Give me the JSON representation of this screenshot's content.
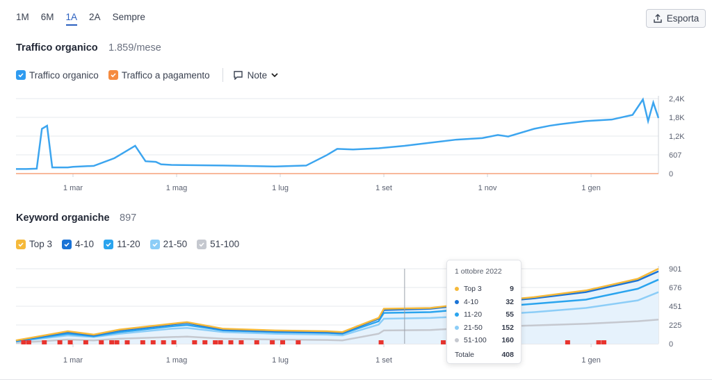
{
  "periods": [
    {
      "label": "1M",
      "active": false
    },
    {
      "label": "6M",
      "active": false
    },
    {
      "label": "1A",
      "active": true
    },
    {
      "label": "2A",
      "active": false
    },
    {
      "label": "Sempre",
      "active": false
    }
  ],
  "export_label": "Esporta",
  "traffic": {
    "title": "Traffico organico",
    "value": "1.859/mese",
    "legend": [
      {
        "label": "Traffico organico",
        "color": "#2e9bf0"
      },
      {
        "label": "Traffico a pagamento",
        "color": "#f58b40"
      }
    ],
    "notes_label": "Note"
  },
  "keywords": {
    "title": "Keyword organiche",
    "value": "897",
    "legend": [
      {
        "label": "Top 3",
        "color": "#f5b93a"
      },
      {
        "label": "4-10",
        "color": "#1a73d6"
      },
      {
        "label": "11-20",
        "color": "#2aa4ee"
      },
      {
        "label": "21-50",
        "color": "#8ccdf7"
      },
      {
        "label": "51-100",
        "color": "#c5c8cf"
      }
    ]
  },
  "x_ticks": [
    "1 mar",
    "1 mag",
    "1 lug",
    "1 set",
    "1 nov",
    "1 gen"
  ],
  "tooltip": {
    "date": "1 ottobre 2022",
    "rows": [
      {
        "name": "Top 3",
        "value": "9",
        "color": "#f5b93a"
      },
      {
        "name": "4-10",
        "value": "32",
        "color": "#1a73d6"
      },
      {
        "name": "11-20",
        "value": "55",
        "color": "#2aa4ee"
      },
      {
        "name": "21-50",
        "value": "152",
        "color": "#8ccdf7"
      },
      {
        "name": "51-100",
        "value": "160",
        "color": "#c5c8cf"
      }
    ],
    "total_label": "Totale",
    "total_value": "408"
  },
  "chart_data": [
    {
      "type": "line",
      "ylabel": "",
      "y_ticks": [
        "2,4K",
        "1,8K",
        "1,2K",
        "607",
        "0"
      ],
      "ylim": [
        0,
        2428
      ],
      "x_ticks": [
        "1 mar",
        "1 mag",
        "1 lug",
        "1 set",
        "1 nov",
        "1 gen"
      ],
      "x_months": [
        0,
        0.2,
        0.4,
        0.5,
        0.6,
        0.7,
        1.0,
        1.1,
        1.5,
        1.9,
        2.0,
        2.3,
        2.5,
        2.7,
        2.8,
        3.0,
        4.0,
        5.0,
        5.6,
        6.0,
        6.2,
        6.5,
        7.0,
        7.5,
        8.0,
        8.5,
        9.0,
        9.3,
        9.5,
        10.0,
        10.3,
        10.5,
        11.0,
        11.5,
        11.9,
        12.1,
        12.2,
        12.3,
        12.4
      ],
      "series": [
        {
          "name": "Traffico organico",
          "values": [
            150,
            150,
            160,
            1450,
            1550,
            200,
            200,
            220,
            250,
            500,
            600,
            900,
            400,
            380,
            300,
            280,
            260,
            230,
            260,
            600,
            800,
            780,
            820,
            900,
            1000,
            1100,
            1150,
            1250,
            1200,
            1450,
            1550,
            1600,
            1700,
            1750,
            1900,
            2400,
            1700,
            2300,
            1800
          ]
        },
        {
          "name": "Traffico a pagamento",
          "values": [
            0,
            0,
            0,
            0,
            0,
            0,
            0,
            0,
            0,
            0,
            0,
            0,
            0,
            0,
            0,
            0,
            0,
            0,
            0,
            0,
            0,
            0,
            0,
            0,
            0,
            0,
            0,
            0,
            0,
            0,
            0,
            0,
            0,
            0,
            0,
            0,
            0,
            0,
            0
          ]
        }
      ]
    },
    {
      "type": "area",
      "y_ticks": [
        "901",
        "676",
        "451",
        "225",
        "0"
      ],
      "ylim": [
        0,
        901
      ],
      "x_ticks": [
        "1 mar",
        "1 mag",
        "1 lug",
        "1 set",
        "1 nov",
        "1 gen"
      ],
      "x_months": [
        0,
        1.0,
        1.5,
        2.0,
        3.0,
        3.3,
        4.0,
        5.0,
        6.0,
        6.3,
        7.0,
        7.1,
        8.0,
        9.0,
        10.0,
        11.0,
        12.0,
        12.4
      ],
      "series": [
        {
          "name": "Top 3",
          "values": [
            40,
            150,
            110,
            170,
            240,
            260,
            180,
            160,
            150,
            140,
            310,
            420,
            430,
            500,
            560,
            640,
            780,
            901
          ]
        },
        {
          "name": "4-10",
          "values": [
            35,
            140,
            100,
            160,
            230,
            250,
            170,
            150,
            140,
            130,
            300,
            405,
            420,
            490,
            545,
            620,
            760,
            870
          ]
        },
        {
          "name": "11-20",
          "values": [
            30,
            120,
            90,
            140,
            210,
            225,
            160,
            140,
            130,
            120,
            270,
            370,
            380,
            430,
            480,
            530,
            660,
            770
          ]
        },
        {
          "name": "21-50",
          "values": [
            25,
            100,
            80,
            120,
            180,
            190,
            140,
            120,
            110,
            100,
            230,
            300,
            310,
            340,
            380,
            430,
            520,
            620
          ]
        },
        {
          "name": "51-100",
          "values": [
            10,
            50,
            40,
            60,
            80,
            85,
            60,
            50,
            45,
            40,
            120,
            160,
            165,
            200,
            220,
            240,
            270,
            290
          ]
        }
      ]
    }
  ]
}
